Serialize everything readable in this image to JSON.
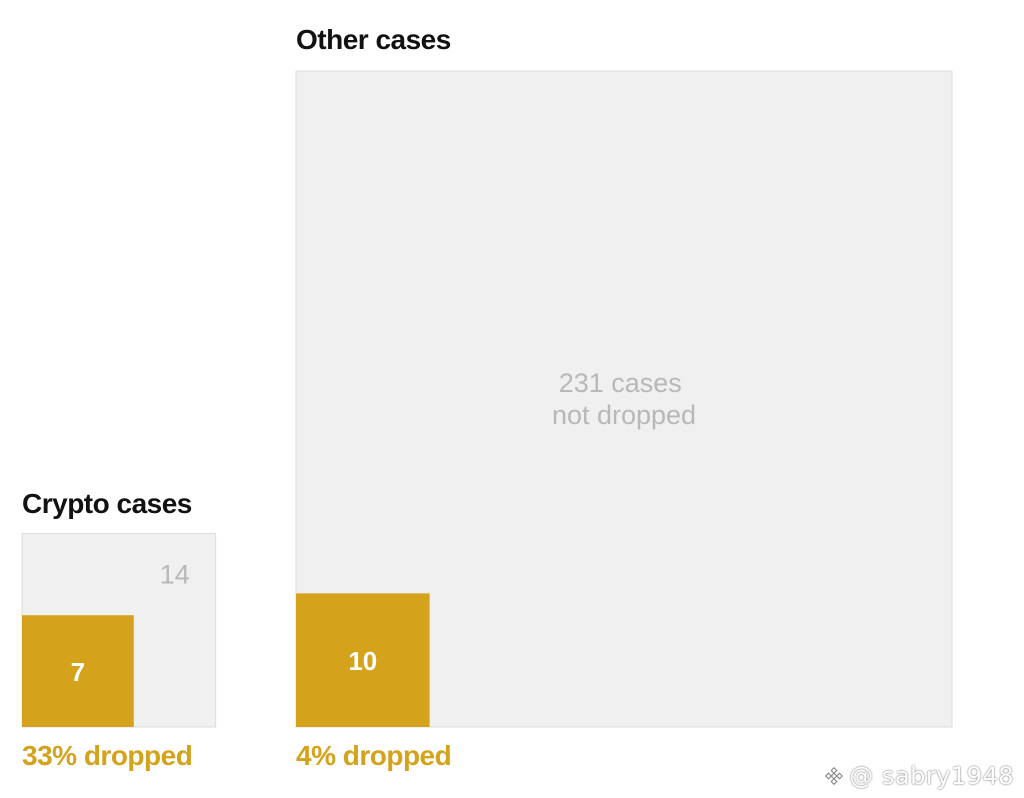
{
  "chart_data": {
    "type": "area-proportional squares",
    "panels": [
      {
        "id": "crypto",
        "title": "Crypto cases",
        "total_cases": 21,
        "dropped": 7,
        "not_dropped": 14,
        "dropped_label": "7",
        "not_dropped_label": "14",
        "percent_label": "33% dropped"
      },
      {
        "id": "other",
        "title": "Other cases",
        "total_cases": 241,
        "dropped": 10,
        "not_dropped": 231,
        "dropped_label": "10",
        "not_dropped_label_line1": "231 cases",
        "not_dropped_label_line2": "not dropped",
        "percent_label": "4% dropped"
      }
    ],
    "colors": {
      "dropped": "#d5a21c",
      "not_dropped": "#f0f0f0",
      "not_dropped_text": "#b8b8b8"
    }
  },
  "watermark": {
    "text": "@ sabry1948",
    "icon": "binance-logo-icon"
  }
}
